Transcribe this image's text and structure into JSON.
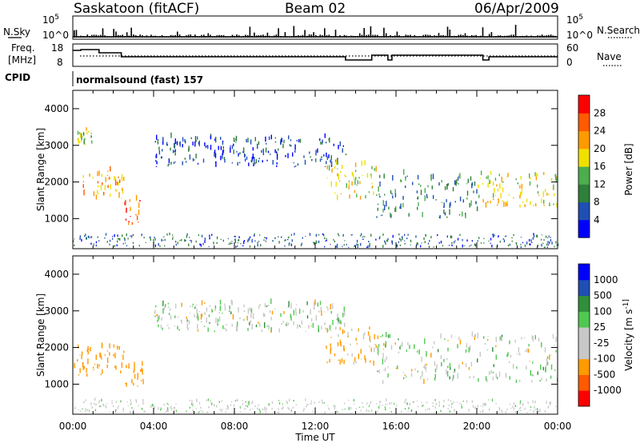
{
  "header": {
    "station": "Saskatoon (fitACF)",
    "beam": "Beam 02",
    "date": "06/Apr/2009"
  },
  "panels": {
    "nsky_label": "N.Sky",
    "nsearch_label": "N.Search",
    "nsky_ticks": [
      "10^5",
      "10^0"
    ],
    "freq_label_1": "Freq.",
    "freq_label_2": "[MHz]",
    "freq_ticks": [
      "18",
      "8"
    ],
    "nave_label": "Nave",
    "nave_ticks": [
      "60",
      "0"
    ],
    "cpid_label": "CPID",
    "cpid_value": "normalsound (fast) 157"
  },
  "colors": {
    "power": [
      "#0000ff",
      "#1f4fb4",
      "#2f7f3a",
      "#4cae4c",
      "#f0e000",
      "#ff9a00",
      "#ff5a00",
      "#ff0000"
    ],
    "velocity": [
      "#ff0000",
      "#ff5a00",
      "#ff9a00",
      "#c8c8c8",
      "#c8c8c8",
      "#50c850",
      "#2f8f3a",
      "#1f4fb4",
      "#0000ff"
    ],
    "ground_scatter": "#c8c8c8"
  },
  "chart_data": [
    {
      "type": "heatmap",
      "title": "Power",
      "ylabel": "Slant Range [km]",
      "xlabel": "Time UT",
      "xlim": [
        "00:00",
        "00:00"
      ],
      "xticks": [
        "00:00",
        "04:00",
        "08:00",
        "12:00",
        "16:00",
        "20:00",
        "00:00"
      ],
      "ylim": [
        180,
        4500
      ],
      "yticks": [
        1000,
        2000,
        3000,
        4000
      ],
      "colorbar": {
        "label": "Power [dB]",
        "ticks": [
          4,
          8,
          12,
          16,
          20,
          24,
          28
        ]
      },
      "echo_regions": [
        {
          "t0": 0.0,
          "t1": 1.0,
          "r0": 2950,
          "r1": 3400,
          "power": 16
        },
        {
          "t0": 0.5,
          "t1": 2.5,
          "r0": 1500,
          "r1": 2300,
          "power": 22
        },
        {
          "t0": 2.5,
          "t1": 3.3,
          "r0": 800,
          "r1": 1500,
          "power": 26
        },
        {
          "t0": 4.0,
          "t1": 13.5,
          "r0": 2400,
          "r1": 3200,
          "power": 6
        },
        {
          "t0": 12.5,
          "t1": 15.0,
          "r0": 1500,
          "r1": 2500,
          "power": 18
        },
        {
          "t0": 15.0,
          "t1": 20.0,
          "r0": 1000,
          "r1": 2200,
          "power": 10
        },
        {
          "t0": 20.0,
          "t1": 24.0,
          "r0": 1300,
          "r1": 2200,
          "power": 18
        }
      ]
    },
    {
      "type": "heatmap",
      "title": "Velocity",
      "ylabel": "Slant Range [km]",
      "xlabel": "Time UT",
      "xlim": [
        "00:00",
        "00:00"
      ],
      "xticks": [
        "00:00",
        "04:00",
        "08:00",
        "12:00",
        "16:00",
        "20:00",
        "00:00"
      ],
      "ylim": [
        180,
        4500
      ],
      "yticks": [
        1000,
        2000,
        3000,
        4000
      ],
      "colorbar": {
        "label": "Velocity [m s^-1]",
        "ticks": [
          1000,
          500,
          100,
          25,
          -25,
          -100,
          -500,
          -1000
        ]
      },
      "echo_regions": [
        {
          "t0": 0.0,
          "t1": 2.5,
          "r0": 1200,
          "r1": 2000,
          "velocity": -300
        },
        {
          "t0": 2.5,
          "t1": 3.5,
          "r0": 900,
          "r1": 1500,
          "velocity": -200
        },
        {
          "t0": 4.0,
          "t1": 13.5,
          "r0": 2400,
          "r1": 3200,
          "velocity": 0
        },
        {
          "t0": 12.5,
          "t1": 15.0,
          "r0": 1500,
          "r1": 2500,
          "velocity": -150
        },
        {
          "t0": 15.0,
          "t1": 24.0,
          "r0": 1000,
          "r1": 2300,
          "velocity": 0
        }
      ]
    }
  ]
}
